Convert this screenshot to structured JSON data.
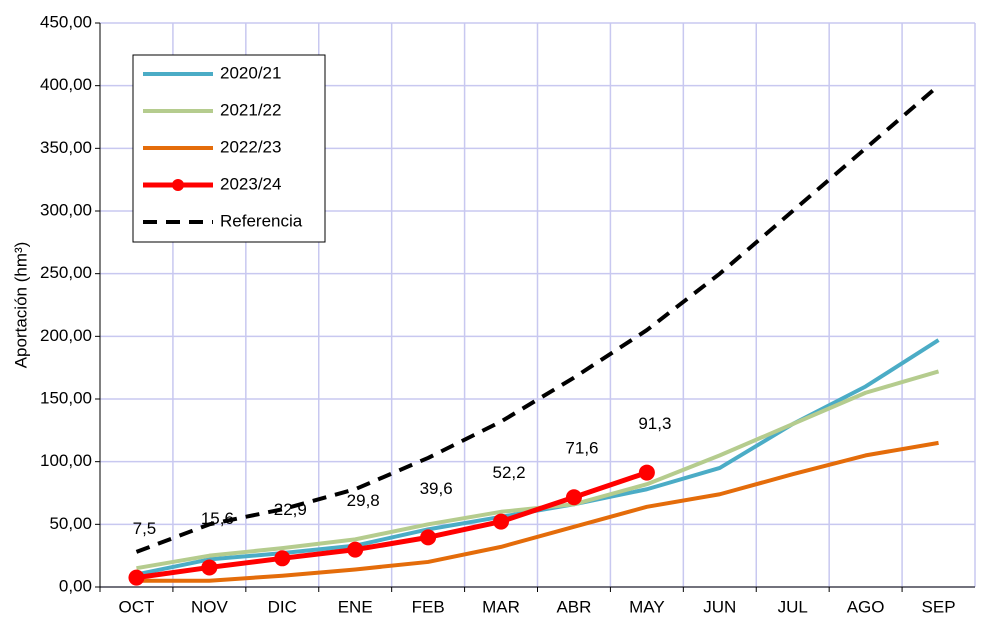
{
  "chart_data": {
    "type": "line",
    "y_label": "Aportación (hm³)",
    "categories": [
      "OCT",
      "NOV",
      "DIC",
      "ENE",
      "FEB",
      "MAR",
      "ABR",
      "MAY",
      "JUN",
      "JUL",
      "AGO",
      "SEP"
    ],
    "ylim": [
      0,
      450
    ],
    "yticks": [
      {
        "value": 0,
        "label": "0,00"
      },
      {
        "value": 50,
        "label": "50,00"
      },
      {
        "value": 100,
        "label": "100,00"
      },
      {
        "value": 150,
        "label": "150,00"
      },
      {
        "value": 200,
        "label": "200,00"
      },
      {
        "value": 250,
        "label": "250,00"
      },
      {
        "value": 300,
        "label": "300,00"
      },
      {
        "value": 350,
        "label": "350,00"
      },
      {
        "value": 400,
        "label": "400,00"
      },
      {
        "value": 450,
        "label": "450,00"
      }
    ],
    "grid": true,
    "legend": "upper left",
    "series": [
      {
        "name": "2020/21",
        "color": "#4bacc6",
        "values": [
          10,
          22,
          27,
          33,
          46,
          56,
          66,
          78,
          95,
          130,
          160,
          197
        ]
      },
      {
        "name": "2021/22",
        "color": "#b5cc8e",
        "values": [
          15,
          25,
          31,
          38,
          50,
          60,
          66,
          82,
          105,
          130,
          155,
          172
        ]
      },
      {
        "name": "2022/23",
        "color": "#e46c0a",
        "values": [
          5,
          5,
          9,
          14,
          20,
          32,
          48,
          64,
          74,
          90,
          105,
          115
        ]
      },
      {
        "name": "2023/24",
        "color": "#ff0000",
        "marker": true,
        "values": [
          7.5,
          15.6,
          22.9,
          29.8,
          39.6,
          52.2,
          71.6,
          91.3,
          null,
          null,
          null,
          null
        ],
        "value_labels": [
          "7,5",
          "15,6",
          "22,9",
          "29,8",
          "39,6",
          "52,2",
          "71,6",
          "91,3",
          null,
          null,
          null,
          null
        ]
      },
      {
        "name": "Referencia",
        "color": "#000000",
        "dashed": true,
        "values": [
          28,
          50,
          62,
          78,
          103,
          132,
          167,
          205,
          250,
          300,
          350,
          400
        ]
      }
    ]
  }
}
